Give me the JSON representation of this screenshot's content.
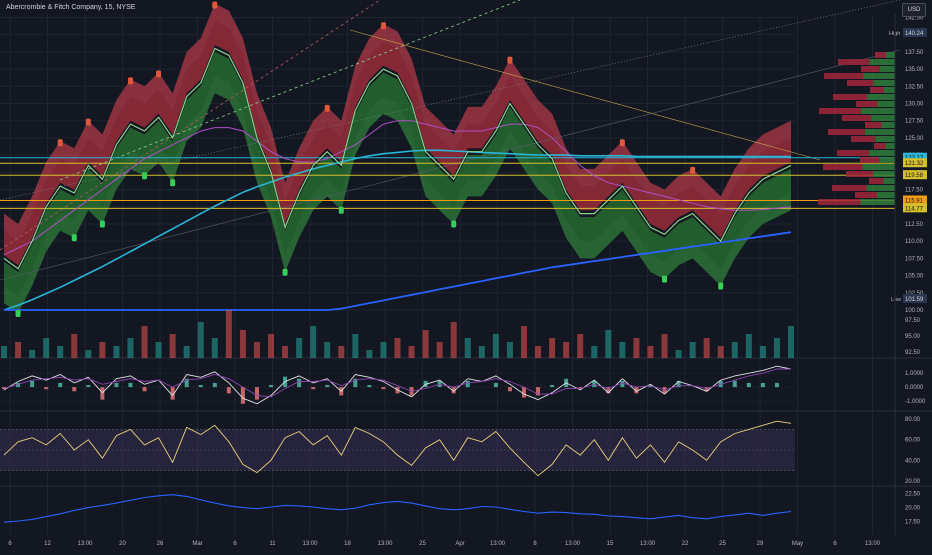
{
  "header": {
    "title": "Abercrombie & Fitch Company, 15, NYSE",
    "currency": "USD"
  },
  "colors": {
    "background": "#131722",
    "grid": "#1f2330",
    "price_line": "#8bd48b",
    "upper_band": "#b23a48",
    "lower_band": "#2f7d3a",
    "ema_cyan": "#29b6d8",
    "ema_blue": "#2962ff",
    "ma_purple": "#b04fc6",
    "hline_yellow": "#d4c02a",
    "hline_orange": "#f39c12",
    "vol_up": "#26a69a",
    "vol_down": "#ef5350",
    "macd_line": "#e0e0e0",
    "signal_line": "#8e44ad",
    "rsi_line": "#e8d27a",
    "atr_line": "#2962ff"
  },
  "chart_data": [
    {
      "type": "line",
      "panel": "price",
      "title": "Abercrombie & Fitch Company, 15, NYSE",
      "ylim": [
        100,
        143
      ],
      "y_ticks": [
        "142.50",
        "140.00",
        "137.50",
        "135.00",
        "132.50",
        "130.00",
        "127.50",
        "125.00",
        "122.50",
        "120.00",
        "117.50",
        "115.00",
        "112.50",
        "110.00",
        "107.50",
        "105.00",
        "102.50",
        "100.00"
      ],
      "x_tick_labels": [
        "6",
        "12",
        "13:00",
        "20",
        "26",
        "Mar",
        "6",
        "11",
        "13:00",
        "18",
        "13:00",
        "25",
        "Apr",
        "13:00",
        "8",
        "13:00",
        "15",
        "13:00",
        "22",
        "25",
        "29",
        "May",
        "6",
        "13:00"
      ],
      "series": [
        {
          "key": "price",
          "values": [
            107.5,
            106,
            110,
            115,
            118,
            117,
            121,
            119,
            124,
            127,
            126,
            128,
            125,
            131,
            133,
            138,
            137,
            133,
            125,
            120,
            112,
            117,
            121,
            123,
            121,
            129,
            133,
            135,
            134,
            130,
            123,
            121,
            119,
            123,
            123,
            126,
            130,
            127,
            124,
            122,
            117,
            114,
            114,
            116,
            118,
            115,
            112,
            111,
            113,
            114,
            112,
            110,
            114,
            117,
            119,
            120,
            121
          ]
        },
        {
          "key": "ema_cyan",
          "values": [
            100,
            100.7,
            101.5,
            102.4,
            103.3,
            104.3,
            105.3,
            106.3,
            107.4,
            108.5,
            109.6,
            110.7,
            111.8,
            112.9,
            114,
            115.1,
            116.1,
            117.1,
            117.9,
            118.6,
            119.3,
            119.9,
            120.5,
            121,
            121.5,
            122,
            122.4,
            122.7,
            122.9,
            123.1,
            123.2,
            123.2,
            123.1,
            123,
            122.9,
            122.8,
            122.7,
            122.6,
            122.5,
            122.5,
            122.5,
            122.4,
            122.4,
            122.4,
            122.4,
            122.3,
            122.3,
            122.3,
            122.3,
            122.3,
            122.3,
            122.3,
            122.3,
            122.3,
            122.3,
            122.3,
            122.3
          ]
        },
        {
          "key": "ema_blue",
          "values": [
            100,
            100,
            100,
            100,
            100,
            100,
            100,
            100,
            100,
            100,
            100,
            100,
            100,
            100,
            100,
            100,
            100,
            100,
            100,
            100,
            100,
            100,
            100,
            100,
            100.2,
            100.6,
            101,
            101.4,
            101.8,
            102.2,
            102.6,
            103,
            103.4,
            103.8,
            104.2,
            104.6,
            105,
            105.4,
            105.8,
            106.2,
            106.5,
            106.8,
            107.1,
            107.4,
            107.7,
            108,
            108.3,
            108.6,
            108.9,
            109.2,
            109.5,
            109.8,
            110.1,
            110.4,
            110.7,
            111,
            111.3
          ]
        },
        {
          "key": "ma_purple",
          "values": [
            108,
            109,
            110,
            111.5,
            113,
            114.5,
            116,
            117.5,
            119,
            120.5,
            122,
            123,
            124,
            125,
            126,
            126.5,
            126.5,
            126,
            124.5,
            123,
            122,
            121.5,
            121.5,
            122,
            123,
            124,
            125.5,
            127,
            127.5,
            127.5,
            127,
            126.5,
            126,
            126,
            126,
            126.5,
            127,
            127,
            126.5,
            125,
            123,
            121,
            119.5,
            118.5,
            118,
            117.5,
            117,
            116.5,
            116,
            115.5,
            115,
            114.7,
            114.5,
            114.5,
            114.6,
            114.8,
            115
          ]
        }
      ],
      "horizontal_levels": [
        {
          "label": "122.12",
          "value": 122.12,
          "color": "#29b6d8"
        },
        {
          "label": "121.32",
          "value": 121.32,
          "color": "#d4c02a"
        },
        {
          "label": "119.58",
          "value": 119.58,
          "color": "#d4c02a"
        },
        {
          "label": "115.91",
          "value": 115.91,
          "color": "#f39c12"
        },
        {
          "label": "114.77",
          "value": 114.77,
          "color": "#d4c02a"
        }
      ],
      "high": {
        "label": "High",
        "value": "140.24"
      },
      "low": {
        "label": "Low",
        "value": "101.59"
      }
    },
    {
      "type": "bar",
      "panel": "volume",
      "values": [
        3,
        4,
        2,
        5,
        3,
        6,
        2,
        4,
        3,
        5,
        8,
        4,
        6,
        3,
        9,
        5,
        12,
        7,
        4,
        6,
        3,
        5,
        8,
        4,
        3,
        6,
        2,
        4,
        5,
        3,
        7,
        4,
        9,
        5,
        3,
        6,
        4,
        8,
        3,
        5,
        4,
        6,
        3,
        7,
        4,
        5,
        3,
        6,
        2,
        4,
        5,
        3,
        4,
        6,
        3,
        5,
        8
      ]
    },
    {
      "type": "line",
      "panel": "macd",
      "y_ticks": [
        "1.0000",
        "0.0000",
        "-1.0000"
      ],
      "ylim": [
        -1.5,
        1.8
      ],
      "series": [
        {
          "key": "macd",
          "values": [
            -0.2,
            0.4,
            0.8,
            0.5,
            0.9,
            0.3,
            0.7,
            -0.4,
            0.6,
            0.8,
            0.2,
            0.5,
            -0.6,
            0.9,
            0.7,
            1.1,
            0.3,
            -0.8,
            -1.2,
            -0.6,
            0.4,
            0.8,
            0.3,
            0.6,
            -0.3,
            0.9,
            0.7,
            0.4,
            -0.2,
            -0.7,
            0.2,
            0.5,
            -0.3,
            0.6,
            0.4,
            0.8,
            0.2,
            -0.5,
            -0.9,
            -0.4,
            0.3,
            -0.2,
            0.5,
            -0.4,
            0.6,
            -0.3,
            0.2,
            -0.5,
            0.4,
            0.1,
            -0.3,
            0.5,
            0.8,
            1.0,
            1.2,
            1.5,
            1.3
          ]
        },
        {
          "key": "signal",
          "values": [
            -0.1,
            0.2,
            0.5,
            0.6,
            0.7,
            0.5,
            0.6,
            0.2,
            0.4,
            0.6,
            0.4,
            0.5,
            0.0,
            0.5,
            0.6,
            0.9,
            0.6,
            0.0,
            -0.6,
            -0.7,
            -0.1,
            0.4,
            0.4,
            0.5,
            0.1,
            0.5,
            0.6,
            0.5,
            0.1,
            -0.3,
            -0.1,
            0.2,
            0.0,
            0.3,
            0.4,
            0.6,
            0.4,
            0.0,
            -0.5,
            -0.5,
            -0.1,
            -0.1,
            0.2,
            -0.1,
            0.3,
            0.0,
            0.1,
            -0.2,
            0.1,
            0.1,
            -0.1,
            0.2,
            0.5,
            0.8,
            1.0,
            1.3,
            1.3
          ]
        }
      ]
    },
    {
      "type": "line",
      "panel": "rsi",
      "y_ticks": [
        "80.00",
        "60.00",
        "40.00",
        "20.00"
      ],
      "ylim": [
        15,
        85
      ],
      "series": [
        {
          "key": "rsi",
          "values": [
            45,
            58,
            62,
            55,
            66,
            50,
            60,
            42,
            64,
            70,
            55,
            62,
            38,
            72,
            65,
            74,
            58,
            36,
            28,
            40,
            62,
            68,
            55,
            64,
            45,
            72,
            66,
            58,
            45,
            35,
            52,
            60,
            40,
            62,
            58,
            68,
            52,
            38,
            25,
            36,
            55,
            45,
            60,
            40,
            62,
            42,
            55,
            38,
            58,
            50,
            40,
            58,
            66,
            70,
            74,
            78,
            76
          ]
        }
      ]
    },
    {
      "type": "line",
      "panel": "atr",
      "y_ticks": [
        "22.50",
        "20.00",
        "17.50"
      ],
      "ylim": [
        16,
        23.5
      ],
      "series": [
        {
          "key": "atr",
          "values": [
            17.4,
            17.6,
            17.9,
            18.4,
            18.9,
            19.5,
            20.0,
            20.4,
            20.8,
            21.3,
            21.8,
            22.1,
            22.3,
            22.0,
            21.4,
            20.8,
            20.3,
            20.0,
            19.8,
            20.1,
            20.4,
            20.3,
            20.1,
            19.8,
            19.6,
            19.9,
            20.5,
            20.9,
            21.1,
            20.8,
            20.3,
            19.8,
            19.6,
            19.8,
            20.2,
            20.1,
            19.7,
            19.3,
            19.0,
            19.2,
            19.1,
            18.9,
            18.8,
            18.5,
            18.4,
            18.2,
            18.0,
            18.3,
            18.6,
            18.2,
            18.0,
            18.4,
            18.7,
            19.0,
            18.6,
            19.0,
            19.3
          ]
        }
      ]
    }
  ]
}
